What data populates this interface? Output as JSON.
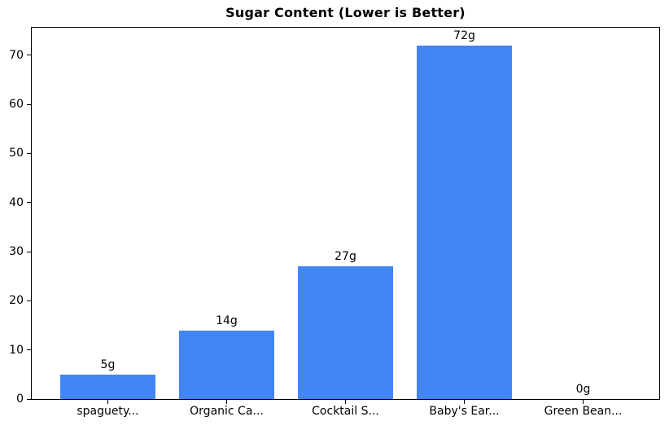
{
  "chart_data": {
    "type": "bar",
    "title": "Sugar Content (Lower is Better)",
    "categories": [
      "spaguety...",
      "Organic Ca...",
      "Cocktail S...",
      "Baby's Ear...",
      "Green Bean..."
    ],
    "values": [
      5,
      14,
      27,
      72,
      0
    ],
    "value_labels": [
      "5g",
      "14g",
      "27g",
      "72g",
      "0g"
    ],
    "xlabel": "",
    "ylabel": "",
    "ylim": [
      0,
      75.6
    ],
    "yticks": [
      0,
      10,
      20,
      30,
      40,
      50,
      60,
      70
    ],
    "bar_color": "#4285F4",
    "axis_color": "#000000",
    "text_color": "#000000",
    "background": "#FFFFFF",
    "grid": false,
    "legend": "none"
  }
}
